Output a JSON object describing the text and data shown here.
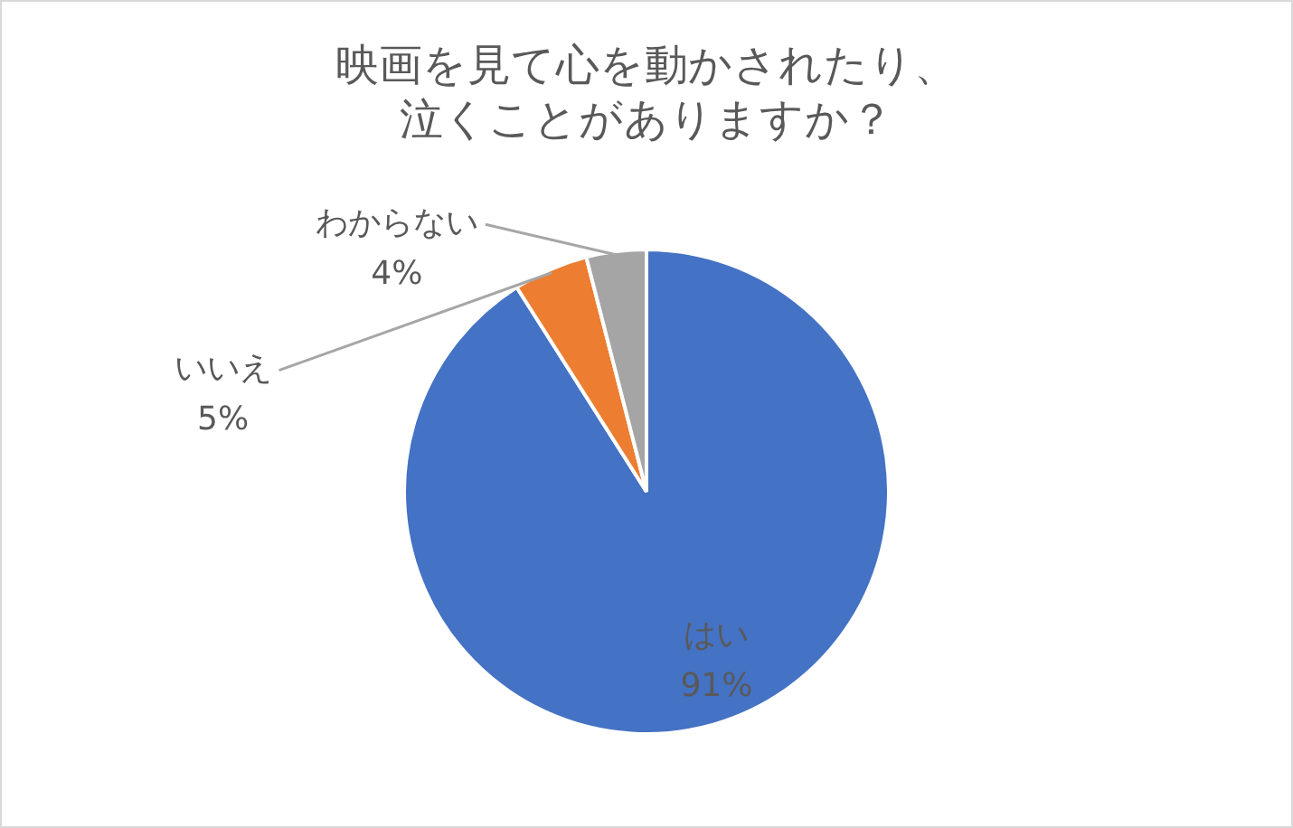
{
  "chart_data": {
    "type": "pie",
    "title": "映画を見て心を動かされたり、泣くことがありますか？",
    "categories": [
      "はい",
      "いいえ",
      "わからない"
    ],
    "values": [
      91,
      5,
      4
    ],
    "value_labels": [
      "91%",
      "5%",
      "4%"
    ],
    "colors": [
      "#4472c4",
      "#ed7d31",
      "#a5a5a5"
    ],
    "legend": false
  }
}
